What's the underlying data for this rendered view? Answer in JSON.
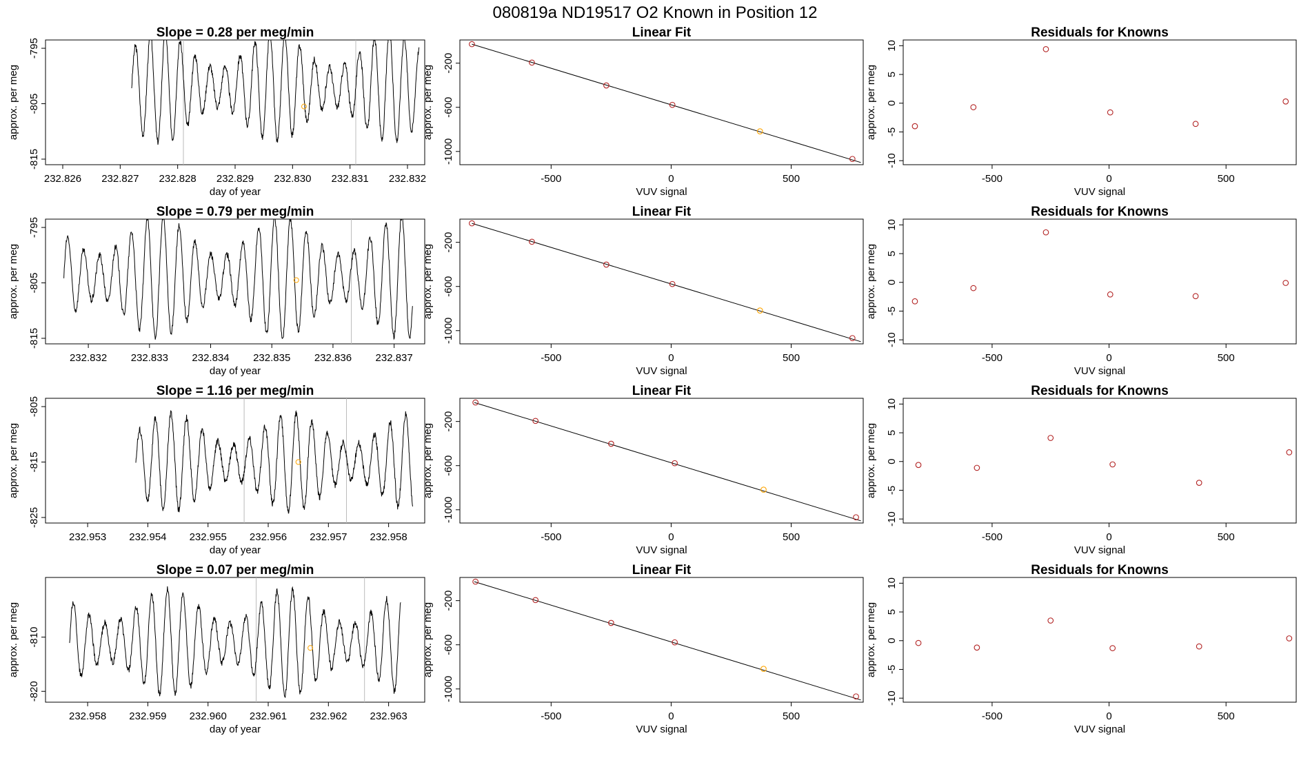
{
  "figure_title": "080819a      ND19517    O2 Known in Position  12",
  "chart_data": [
    {
      "type": "line",
      "panel": "row1-timeseries",
      "title": "Slope =  0.28  per meg/min",
      "xlabel": "day of year",
      "ylabel": "approx. per meg",
      "xlim": [
        232.8257,
        232.8323
      ],
      "ylim": [
        -816,
        -793.5
      ],
      "xticks": [
        232.826,
        232.827,
        232.828,
        232.829,
        232.83,
        232.831,
        232.832
      ],
      "xtick_labels": [
        "232.826",
        "232.827",
        "232.828",
        "232.829",
        "232.830",
        "232.831",
        "232.832"
      ],
      "yticks": [
        -795,
        -805,
        -815
      ],
      "ytick_labels": [
        "-795",
        "-805",
        "-815"
      ],
      "t_start": 232.8272,
      "t_end": 232.8322,
      "osc_period": 0.00026,
      "osc_amp": 9,
      "osc_base": -802,
      "vlines": [
        232.8281,
        232.8311
      ],
      "marker": {
        "x": 232.8302,
        "y": -805.5,
        "color": "#FFA500"
      }
    },
    {
      "type": "scatter",
      "panel": "row1-linear-fit",
      "title": "Linear Fit",
      "xlabel": "VUV signal",
      "ylabel": "approx. per meg",
      "xlim": [
        -880,
        800
      ],
      "ylim": [
        -1120,
        10
      ],
      "xticks": [
        -500,
        0,
        500
      ],
      "xtick_labels": [
        "-500",
        "0",
        "500"
      ],
      "yticks": [
        -200,
        -600,
        -1000
      ],
      "ytick_labels": [
        "-200",
        "-600",
        "-1000"
      ],
      "line": {
        "x": [
          -830,
          790
        ],
        "y": [
          -28,
          -1100
        ]
      },
      "points": [
        {
          "x": -830,
          "y": -28,
          "color": "#B22222"
        },
        {
          "x": -580,
          "y": -195,
          "color": "#B22222"
        },
        {
          "x": -270,
          "y": -402,
          "color": "#B22222"
        },
        {
          "x": 5,
          "y": -578,
          "color": "#B22222"
        },
        {
          "x": 370,
          "y": -818,
          "color": "#FFA500"
        },
        {
          "x": 755,
          "y": -1068,
          "color": "#B22222"
        }
      ]
    },
    {
      "type": "scatter",
      "panel": "row1-residuals",
      "title": "Residuals for Knowns",
      "xlabel": "VUV signal",
      "ylabel": "approx. per meg",
      "xlim": [
        -880,
        800
      ],
      "ylim": [
        -10.7,
        11
      ],
      "xticks": [
        -500,
        0,
        500
      ],
      "xtick_labels": [
        "-500",
        "0",
        "500"
      ],
      "yticks": [
        10,
        5,
        0,
        -5,
        -10
      ],
      "ytick_labels": [
        "10",
        "5",
        "0",
        "-5",
        "-10"
      ],
      "points": [
        {
          "x": -830,
          "y": -4.0,
          "color": "#B22222"
        },
        {
          "x": -580,
          "y": -0.7,
          "color": "#B22222"
        },
        {
          "x": -270,
          "y": 9.4,
          "color": "#B22222"
        },
        {
          "x": 5,
          "y": -1.6,
          "color": "#B22222"
        },
        {
          "x": 370,
          "y": -3.6,
          "color": "#B22222"
        },
        {
          "x": 755,
          "y": 0.3,
          "color": "#B22222"
        }
      ]
    },
    {
      "type": "line",
      "panel": "row2-timeseries",
      "title": "Slope =  0.79  per meg/min",
      "xlabel": "day of year",
      "ylabel": "approx. per meg",
      "xlim": [
        232.8313,
        232.8375
      ],
      "ylim": [
        -816,
        -793.5
      ],
      "xticks": [
        232.832,
        232.833,
        232.834,
        232.835,
        232.836,
        232.837
      ],
      "xtick_labels": [
        "232.832",
        "232.833",
        "232.834",
        "232.835",
        "232.836",
        "232.837"
      ],
      "yticks": [
        -795,
        -805,
        -815
      ],
      "ytick_labels": [
        "-795",
        "-805",
        "-815"
      ],
      "t_start": 232.8316,
      "t_end": 232.8373,
      "osc_period": 0.00026,
      "osc_amp": 10,
      "osc_base": -804,
      "vlines": [
        232.8363
      ],
      "marker": {
        "x": 232.8354,
        "y": -804.5,
        "color": "#FFA500"
      }
    },
    {
      "type": "scatter",
      "panel": "row2-linear-fit",
      "title": "Linear Fit",
      "xlabel": "VUV signal",
      "ylabel": "approx. per meg",
      "xlim": [
        -880,
        800
      ],
      "ylim": [
        -1120,
        10
      ],
      "xticks": [
        -500,
        0,
        500
      ],
      "xtick_labels": [
        "-500",
        "0",
        "500"
      ],
      "yticks": [
        -200,
        -600,
        -1000
      ],
      "ytick_labels": [
        "-200",
        "-600",
        "-1000"
      ],
      "line": {
        "x": [
          -830,
          790
        ],
        "y": [
          -28,
          -1100
        ]
      },
      "points": [
        {
          "x": -830,
          "y": -28,
          "color": "#B22222"
        },
        {
          "x": -580,
          "y": -195,
          "color": "#B22222"
        },
        {
          "x": -270,
          "y": -402,
          "color": "#B22222"
        },
        {
          "x": 5,
          "y": -578,
          "color": "#B22222"
        },
        {
          "x": 370,
          "y": -818,
          "color": "#FFA500"
        },
        {
          "x": 755,
          "y": -1068,
          "color": "#B22222"
        }
      ]
    },
    {
      "type": "scatter",
      "panel": "row2-residuals",
      "title": "Residuals for Knowns",
      "xlabel": "VUV signal",
      "ylabel": "approx. per meg",
      "xlim": [
        -880,
        800
      ],
      "ylim": [
        -10.7,
        11
      ],
      "xticks": [
        -500,
        0,
        500
      ],
      "xtick_labels": [
        "-500",
        "0",
        "500"
      ],
      "yticks": [
        10,
        5,
        0,
        -5,
        -10
      ],
      "ytick_labels": [
        "10",
        "5",
        "0",
        "-5",
        "-10"
      ],
      "points": [
        {
          "x": -830,
          "y": -3.3,
          "color": "#B22222"
        },
        {
          "x": -580,
          "y": -1.0,
          "color": "#B22222"
        },
        {
          "x": -270,
          "y": 8.7,
          "color": "#B22222"
        },
        {
          "x": 5,
          "y": -2.1,
          "color": "#B22222"
        },
        {
          "x": 370,
          "y": -2.4,
          "color": "#B22222"
        },
        {
          "x": 755,
          "y": -0.1,
          "color": "#B22222"
        }
      ]
    },
    {
      "type": "line",
      "panel": "row3-timeseries",
      "title": "Slope = 1.16  per meg/min",
      "xlabel": "day of year",
      "ylabel": "approx. per meg",
      "xlim": [
        232.9523,
        232.9586
      ],
      "ylim": [
        -826,
        -803.5
      ],
      "xticks": [
        232.953,
        232.954,
        232.955,
        232.956,
        232.957,
        232.958
      ],
      "xtick_labels": [
        "232.953",
        "232.954",
        "232.955",
        "232.956",
        "232.957",
        "232.958"
      ],
      "yticks": [
        -805,
        -815,
        -825
      ],
      "ytick_labels": [
        "-805",
        "-815",
        "-825"
      ],
      "t_start": 232.9538,
      "t_end": 232.9584,
      "osc_period": 0.00026,
      "osc_amp": 8,
      "osc_base": -815,
      "vlines": [
        232.9556,
        232.9573
      ],
      "marker": {
        "x": 232.9565,
        "y": -815,
        "color": "#FFA500"
      }
    },
    {
      "type": "scatter",
      "panel": "row3-linear-fit",
      "title": "Linear Fit",
      "xlabel": "VUV signal",
      "ylabel": "approx. per meg",
      "xlim": [
        -880,
        800
      ],
      "ylim": [
        -1120,
        10
      ],
      "xticks": [
        -500,
        0,
        500
      ],
      "xtick_labels": [
        "-500",
        "0",
        "500"
      ],
      "yticks": [
        -200,
        -600,
        -1000
      ],
      "ytick_labels": [
        "-200",
        "-600",
        "-1000"
      ],
      "line": {
        "x": [
          -820,
          790
        ],
        "y": [
          -28,
          -1100
        ]
      },
      "points": [
        {
          "x": -815,
          "y": -28,
          "color": "#B22222"
        },
        {
          "x": -565,
          "y": -195,
          "color": "#B22222"
        },
        {
          "x": -250,
          "y": -402,
          "color": "#B22222"
        },
        {
          "x": 15,
          "y": -578,
          "color": "#B22222"
        },
        {
          "x": 385,
          "y": -818,
          "color": "#FFA500"
        },
        {
          "x": 770,
          "y": -1068,
          "color": "#B22222"
        }
      ]
    },
    {
      "type": "scatter",
      "panel": "row3-residuals",
      "title": "Residuals for Knowns",
      "xlabel": "VUV signal",
      "ylabel": "approx. per meg",
      "xlim": [
        -880,
        800
      ],
      "ylim": [
        -10.7,
        11
      ],
      "xticks": [
        -500,
        0,
        500
      ],
      "xtick_labels": [
        "-500",
        "0",
        "500"
      ],
      "yticks": [
        10,
        5,
        0,
        -5,
        -10
      ],
      "ytick_labels": [
        "10",
        "5",
        "0",
        "-5",
        "-10"
      ],
      "points": [
        {
          "x": -815,
          "y": -0.6,
          "color": "#B22222"
        },
        {
          "x": -565,
          "y": -1.1,
          "color": "#B22222"
        },
        {
          "x": -250,
          "y": 4.1,
          "color": "#B22222"
        },
        {
          "x": 15,
          "y": -0.5,
          "color": "#B22222"
        },
        {
          "x": 385,
          "y": -3.7,
          "color": "#B22222"
        },
        {
          "x": 770,
          "y": 1.6,
          "color": "#B22222"
        }
      ]
    },
    {
      "type": "line",
      "panel": "row4-timeseries",
      "title": "Slope =  0.07  per meg/min",
      "xlabel": "day of year",
      "ylabel": "approx. per meg",
      "xlim": [
        232.9573,
        232.9636
      ],
      "ylim": [
        -822,
        -799
      ],
      "xticks": [
        232.958,
        232.959,
        232.96,
        232.961,
        232.962,
        232.963
      ],
      "xtick_labels": [
        "232.958",
        "232.959",
        "232.960",
        "232.961",
        "232.962",
        "232.963"
      ],
      "yticks": [
        -810,
        -820
      ],
      "ytick_labels": [
        "-810",
        "-820"
      ],
      "t_start": 232.9577,
      "t_end": 232.9632,
      "osc_period": 0.00026,
      "osc_amp": 9,
      "osc_base": -811,
      "vlines": [
        232.9608,
        232.9626
      ],
      "marker": {
        "x": 232.9617,
        "y": -812,
        "color": "#FFA500"
      }
    },
    {
      "type": "scatter",
      "panel": "row4-linear-fit",
      "title": "Linear Fit",
      "xlabel": "VUV signal",
      "ylabel": "approx. per meg",
      "xlim": [
        -880,
        800
      ],
      "ylim": [
        -1120,
        10
      ],
      "xticks": [
        -500,
        0,
        500
      ],
      "xtick_labels": [
        "-500",
        "0",
        "500"
      ],
      "yticks": [
        -200,
        -600,
        -1000
      ],
      "ytick_labels": [
        "-200",
        "-600",
        "-1000"
      ],
      "line": {
        "x": [
          -820,
          790
        ],
        "y": [
          -28,
          -1100
        ]
      },
      "points": [
        {
          "x": -815,
          "y": -28,
          "color": "#B22222"
        },
        {
          "x": -565,
          "y": -195,
          "color": "#B22222"
        },
        {
          "x": -250,
          "y": -402,
          "color": "#B22222"
        },
        {
          "x": 15,
          "y": -578,
          "color": "#B22222"
        },
        {
          "x": 385,
          "y": -818,
          "color": "#FFA500"
        },
        {
          "x": 770,
          "y": -1068,
          "color": "#B22222"
        }
      ]
    },
    {
      "type": "scatter",
      "panel": "row4-residuals",
      "title": "Residuals for Knowns",
      "xlabel": "VUV signal",
      "ylabel": "approx. per meg",
      "xlim": [
        -880,
        800
      ],
      "ylim": [
        -10.7,
        11
      ],
      "xticks": [
        -500,
        0,
        500
      ],
      "xtick_labels": [
        "-500",
        "0",
        "500"
      ],
      "yticks": [
        10,
        5,
        0,
        -5,
        -10
      ],
      "ytick_labels": [
        "10",
        "5",
        "0",
        "-5",
        "-10"
      ],
      "points": [
        {
          "x": -815,
          "y": -0.4,
          "color": "#B22222"
        },
        {
          "x": -565,
          "y": -1.2,
          "color": "#B22222"
        },
        {
          "x": -250,
          "y": 3.5,
          "color": "#B22222"
        },
        {
          "x": 15,
          "y": -1.3,
          "color": "#B22222"
        },
        {
          "x": 385,
          "y": -1.0,
          "color": "#B22222"
        },
        {
          "x": 770,
          "y": 0.4,
          "color": "#B22222"
        }
      ]
    }
  ]
}
